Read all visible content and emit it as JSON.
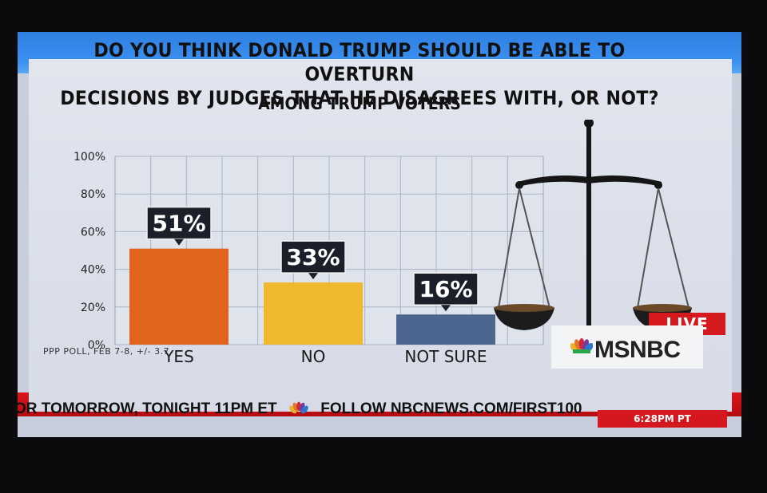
{
  "headline": {
    "line1": "DO YOU THINK DONALD TRUMP SHOULD BE ABLE TO OVERTURN",
    "line2": "DECISIONS BY JUDGES THAT HE DISAGREES WITH, OR NOT?"
  },
  "chart_data": {
    "type": "bar",
    "title": "DO YOU THINK DONALD TRUMP SHOULD BE ABLE TO OVERTURN DECISIONS BY JUDGES THAT HE DISAGREES WITH, OR NOT?",
    "subtitle": "AMONG TRUMP VOTERS",
    "categories": [
      "YES",
      "NO",
      "NOT SURE"
    ],
    "values": [
      51,
      33,
      16
    ],
    "value_labels": [
      "51%",
      "33%",
      "16%"
    ],
    "y_ticks": [
      "0%",
      "20%",
      "40%",
      "60%",
      "80%",
      "100%"
    ],
    "ylim": [
      0,
      100
    ],
    "bar_colors": [
      "#e0641c",
      "#f0b82c",
      "#4c6690"
    ],
    "grid": true,
    "xlabel": "",
    "ylabel": ""
  },
  "source": "PPP POLL, FEB 7-8, +/- 3.7",
  "branding": {
    "live": "LIVE",
    "network": "MSNBC"
  },
  "ticker": {
    "segment1": "OR TOMORROW, TONIGHT 11PM ET",
    "segment2": "FOLLOW NBCNEWS.COM/FIRST100",
    "time": "6:28PM PT"
  },
  "colors": {
    "accent_red": "#d41a1e",
    "accent_blue": "#2f7fe0"
  }
}
